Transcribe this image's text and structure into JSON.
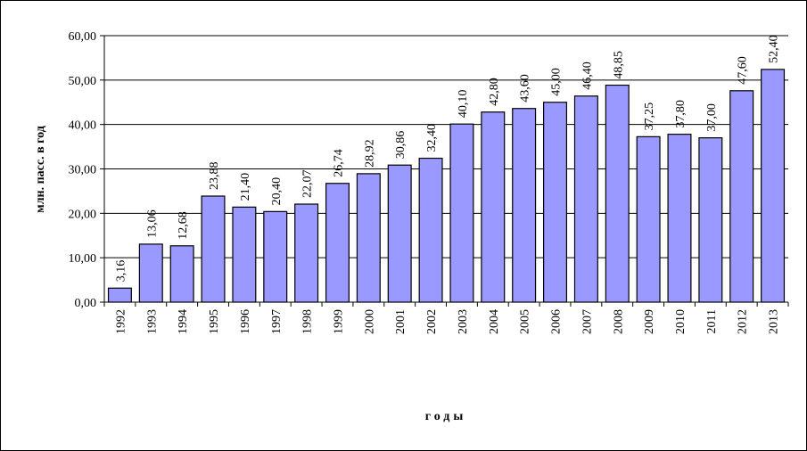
{
  "chart_data": {
    "type": "bar",
    "title": "",
    "ylabel": "млн. пасс. в год",
    "xlabel": "годы",
    "ylim": [
      0,
      60
    ],
    "ytick_labels": [
      "0,00",
      "10,00",
      "20,00",
      "30,00",
      "40,00",
      "50,00",
      "60,00"
    ],
    "grid": true,
    "legend": "none",
    "bar_color": "#9999ff",
    "categories": [
      "1992",
      "1993",
      "1994",
      "1995",
      "1996",
      "1997",
      "1998",
      "1999",
      "2000",
      "2001",
      "2002",
      "2003",
      "2004",
      "2005",
      "2006",
      "2007",
      "2008",
      "2009",
      "2010",
      "2011",
      "2012",
      "2013"
    ],
    "values": [
      3.16,
      13.06,
      12.68,
      23.88,
      21.4,
      20.4,
      22.07,
      26.74,
      28.92,
      30.86,
      32.4,
      40.1,
      42.8,
      43.6,
      45.0,
      46.4,
      48.85,
      37.25,
      37.8,
      37.0,
      47.6,
      52.4
    ],
    "value_labels": [
      "3,16",
      "13,06",
      "12,68",
      "23,88",
      "21,40",
      "20,40",
      "22,07",
      "26,74",
      "28,92",
      "30,86",
      "32,40",
      "40,10",
      "42,80",
      "43,60",
      "45,00",
      "46,40",
      "48,85",
      "37,25",
      "37,80",
      "37,00",
      "47,60",
      "52,40"
    ]
  }
}
